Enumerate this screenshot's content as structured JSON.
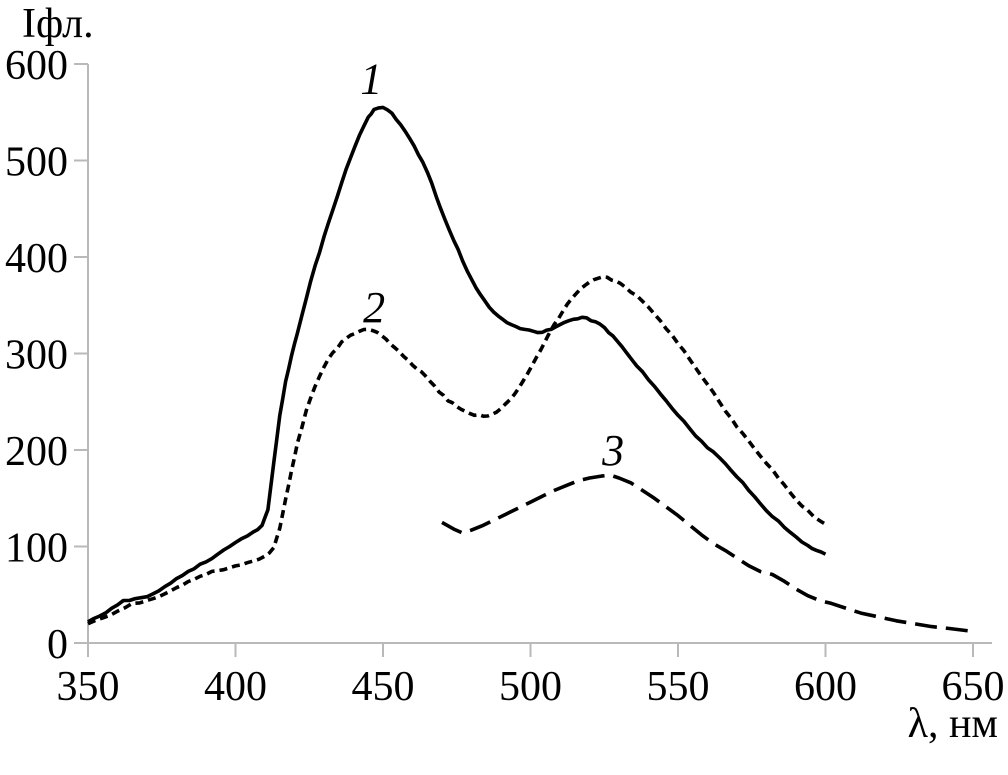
{
  "chart_data": {
    "type": "line",
    "title": "",
    "ylabel": "Іфл.",
    "xlabel": "λ, нм",
    "xlim": [
      350,
      650
    ],
    "ylim": [
      0,
      600
    ],
    "x_ticks": [
      350,
      400,
      450,
      500,
      550,
      600,
      650
    ],
    "y_ticks": [
      0,
      100,
      200,
      300,
      400,
      500,
      600
    ],
    "grid": false,
    "legend_position": "none (curves labeled inline with italic numerals)",
    "colors": {
      "line": "#000000",
      "axis": "#b9b9b9",
      "text": "#000000",
      "background": "#ffffff"
    },
    "series": [
      {
        "name": "1",
        "style": "solid",
        "noisy": true,
        "label_pos": {
          "x": 446,
          "y": 585
        },
        "points": [
          [
            350,
            22
          ],
          [
            354,
            28
          ],
          [
            358,
            36
          ],
          [
            362,
            44
          ],
          [
            366,
            46
          ],
          [
            370,
            48
          ],
          [
            374,
            54
          ],
          [
            378,
            62
          ],
          [
            382,
            70
          ],
          [
            386,
            77
          ],
          [
            390,
            84
          ],
          [
            394,
            92
          ],
          [
            398,
            100
          ],
          [
            402,
            108
          ],
          [
            406,
            115
          ],
          [
            409,
            122
          ],
          [
            411,
            138
          ],
          [
            413,
            188
          ],
          [
            415,
            236
          ],
          [
            417,
            271
          ],
          [
            419,
            298
          ],
          [
            421,
            321
          ],
          [
            424,
            357
          ],
          [
            427,
            391
          ],
          [
            430,
            421
          ],
          [
            433,
            449
          ],
          [
            436,
            477
          ],
          [
            439,
            503
          ],
          [
            442,
            526
          ],
          [
            445,
            545
          ],
          [
            447,
            553
          ],
          [
            450,
            555
          ],
          [
            453,
            549
          ],
          [
            456,
            537
          ],
          [
            459,
            523
          ],
          [
            462,
            506
          ],
          [
            465,
            488
          ],
          [
            468,
            463
          ],
          [
            471,
            439
          ],
          [
            474,
            417
          ],
          [
            477,
            396
          ],
          [
            480,
            377
          ],
          [
            483,
            361
          ],
          [
            486,
            348
          ],
          [
            489,
            339
          ],
          [
            492,
            332
          ],
          [
            495,
            328
          ],
          [
            498,
            325
          ],
          [
            501,
            323
          ],
          [
            504,
            322
          ],
          [
            507,
            325
          ],
          [
            510,
            330
          ],
          [
            513,
            334
          ],
          [
            516,
            336
          ],
          [
            519,
            337
          ],
          [
            522,
            333
          ],
          [
            525,
            327
          ],
          [
            528,
            318
          ],
          [
            531,
            307
          ],
          [
            534,
            295
          ],
          [
            538,
            281
          ],
          [
            542,
            266
          ],
          [
            546,
            251
          ],
          [
            550,
            236
          ],
          [
            554,
            222
          ],
          [
            558,
            209
          ],
          [
            562,
            198
          ],
          [
            566,
            186
          ],
          [
            570,
            172
          ],
          [
            574,
            158
          ],
          [
            578,
            144
          ],
          [
            582,
            131
          ],
          [
            586,
            120
          ],
          [
            590,
            110
          ],
          [
            594,
            101
          ],
          [
            597,
            96
          ],
          [
            600,
            92
          ]
        ]
      },
      {
        "name": "2",
        "style": "short-dash",
        "noisy": true,
        "label_pos": {
          "x": 447,
          "y": 348
        },
        "points": [
          [
            350,
            20
          ],
          [
            355,
            26
          ],
          [
            360,
            33
          ],
          [
            365,
            41
          ],
          [
            370,
            44
          ],
          [
            374,
            48
          ],
          [
            378,
            54
          ],
          [
            382,
            60
          ],
          [
            386,
            66
          ],
          [
            390,
            71
          ],
          [
            394,
            75
          ],
          [
            398,
            78
          ],
          [
            402,
            81
          ],
          [
            406,
            85
          ],
          [
            410,
            90
          ],
          [
            413,
            99
          ],
          [
            415,
            119
          ],
          [
            417,
            149
          ],
          [
            419,
            179
          ],
          [
            421,
            207
          ],
          [
            424,
            241
          ],
          [
            427,
            266
          ],
          [
            430,
            286
          ],
          [
            433,
            301
          ],
          [
            436,
            312
          ],
          [
            439,
            319
          ],
          [
            442,
            323
          ],
          [
            445,
            325
          ],
          [
            448,
            322
          ],
          [
            451,
            315
          ],
          [
            454,
            306
          ],
          [
            457,
            297
          ],
          [
            460,
            288
          ],
          [
            463,
            281
          ],
          [
            466,
            271
          ],
          [
            469,
            260
          ],
          [
            472,
            251
          ],
          [
            475,
            245
          ],
          [
            478,
            240
          ],
          [
            481,
            236
          ],
          [
            484,
            235
          ],
          [
            487,
            237
          ],
          [
            490,
            243
          ],
          [
            493,
            252
          ],
          [
            496,
            264
          ],
          [
            499,
            279
          ],
          [
            502,
            296
          ],
          [
            505,
            313
          ],
          [
            508,
            330
          ],
          [
            511,
            344
          ],
          [
            514,
            357
          ],
          [
            517,
            367
          ],
          [
            520,
            374
          ],
          [
            523,
            378
          ],
          [
            526,
            379
          ],
          [
            529,
            375
          ],
          [
            532,
            369
          ],
          [
            536,
            360
          ],
          [
            540,
            348
          ],
          [
            544,
            334
          ],
          [
            548,
            319
          ],
          [
            552,
            303
          ],
          [
            556,
            285
          ],
          [
            560,
            268
          ],
          [
            564,
            250
          ],
          [
            568,
            233
          ],
          [
            572,
            217
          ],
          [
            576,
            201
          ],
          [
            580,
            186
          ],
          [
            584,
            171
          ],
          [
            588,
            156
          ],
          [
            592,
            142
          ],
          [
            596,
            131
          ],
          [
            600,
            123
          ]
        ]
      },
      {
        "name": "3",
        "style": "long-dash",
        "noisy": false,
        "label_pos": {
          "x": 528,
          "y": 200
        },
        "points": [
          [
            470,
            125
          ],
          [
            474,
            118
          ],
          [
            477,
            114
          ],
          [
            480,
            117
          ],
          [
            484,
            122
          ],
          [
            488,
            128
          ],
          [
            492,
            134
          ],
          [
            496,
            140
          ],
          [
            500,
            146
          ],
          [
            504,
            152
          ],
          [
            508,
            158
          ],
          [
            512,
            163
          ],
          [
            516,
            168
          ],
          [
            520,
            171
          ],
          [
            524,
            173
          ],
          [
            527,
            174
          ],
          [
            530,
            171
          ],
          [
            534,
            166
          ],
          [
            538,
            158
          ],
          [
            542,
            150
          ],
          [
            546,
            141
          ],
          [
            550,
            132
          ],
          [
            554,
            122
          ],
          [
            558,
            112
          ],
          [
            562,
            103
          ],
          [
            566,
            96
          ],
          [
            570,
            88
          ],
          [
            574,
            80
          ],
          [
            578,
            74
          ],
          [
            582,
            71
          ],
          [
            586,
            64
          ],
          [
            590,
            56
          ],
          [
            594,
            49
          ],
          [
            598,
            44
          ],
          [
            602,
            41
          ],
          [
            607,
            36
          ],
          [
            612,
            31
          ],
          [
            618,
            27
          ],
          [
            624,
            23
          ],
          [
            630,
            20
          ],
          [
            636,
            17
          ],
          [
            642,
            15
          ],
          [
            650,
            12
          ]
        ]
      }
    ]
  }
}
